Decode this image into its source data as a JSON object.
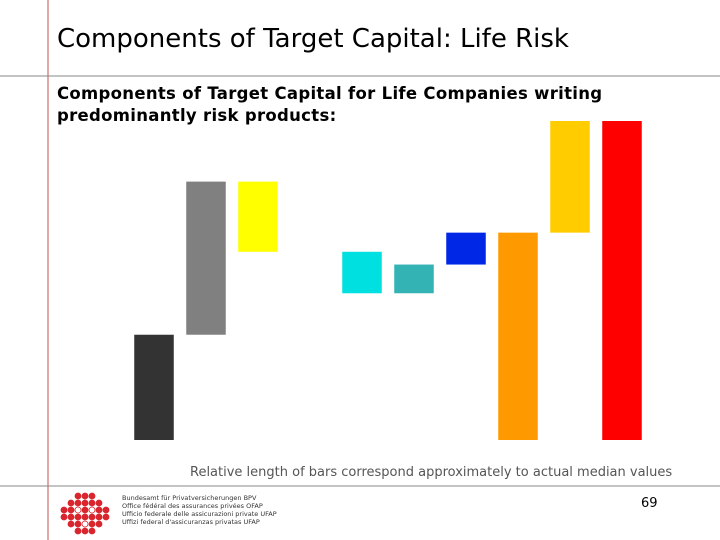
{
  "slide_title": "Components of Target Capital: Life Risk",
  "page_number": 69,
  "logo": {
    "lines": [
      "Bundesamt für Privatversicherungen BPV",
      "Office fédéral des assurances privées OFAP",
      "Ufficio federale delle assicurazioni private UFAP",
      "Uffizi federal d'assicuranzas privatas UFAP"
    ]
  },
  "chart_data": {
    "type": "waterfall",
    "title": "Components of Target Capital for Life Companies writing predominantly risk products:",
    "note": "Relative length of bars correspond approximately to actual median values",
    "categories": [
      null,
      null,
      null,
      null,
      null,
      null,
      null,
      null,
      null,
      null
    ],
    "values": [
      33,
      48,
      -22,
      null,
      -13,
      9,
      10,
      65,
      35,
      100
    ],
    "is_total": [
      false,
      false,
      false,
      false,
      false,
      false,
      false,
      true,
      false,
      true
    ],
    "colors": [
      "#333333",
      "#808080",
      "#ffff00",
      null,
      "#00e0e0",
      "#33b3b3",
      "#0026e6",
      "#ff9900",
      "#ffcc00",
      "#ff0000"
    ],
    "ylim": [
      0,
      100
    ]
  }
}
